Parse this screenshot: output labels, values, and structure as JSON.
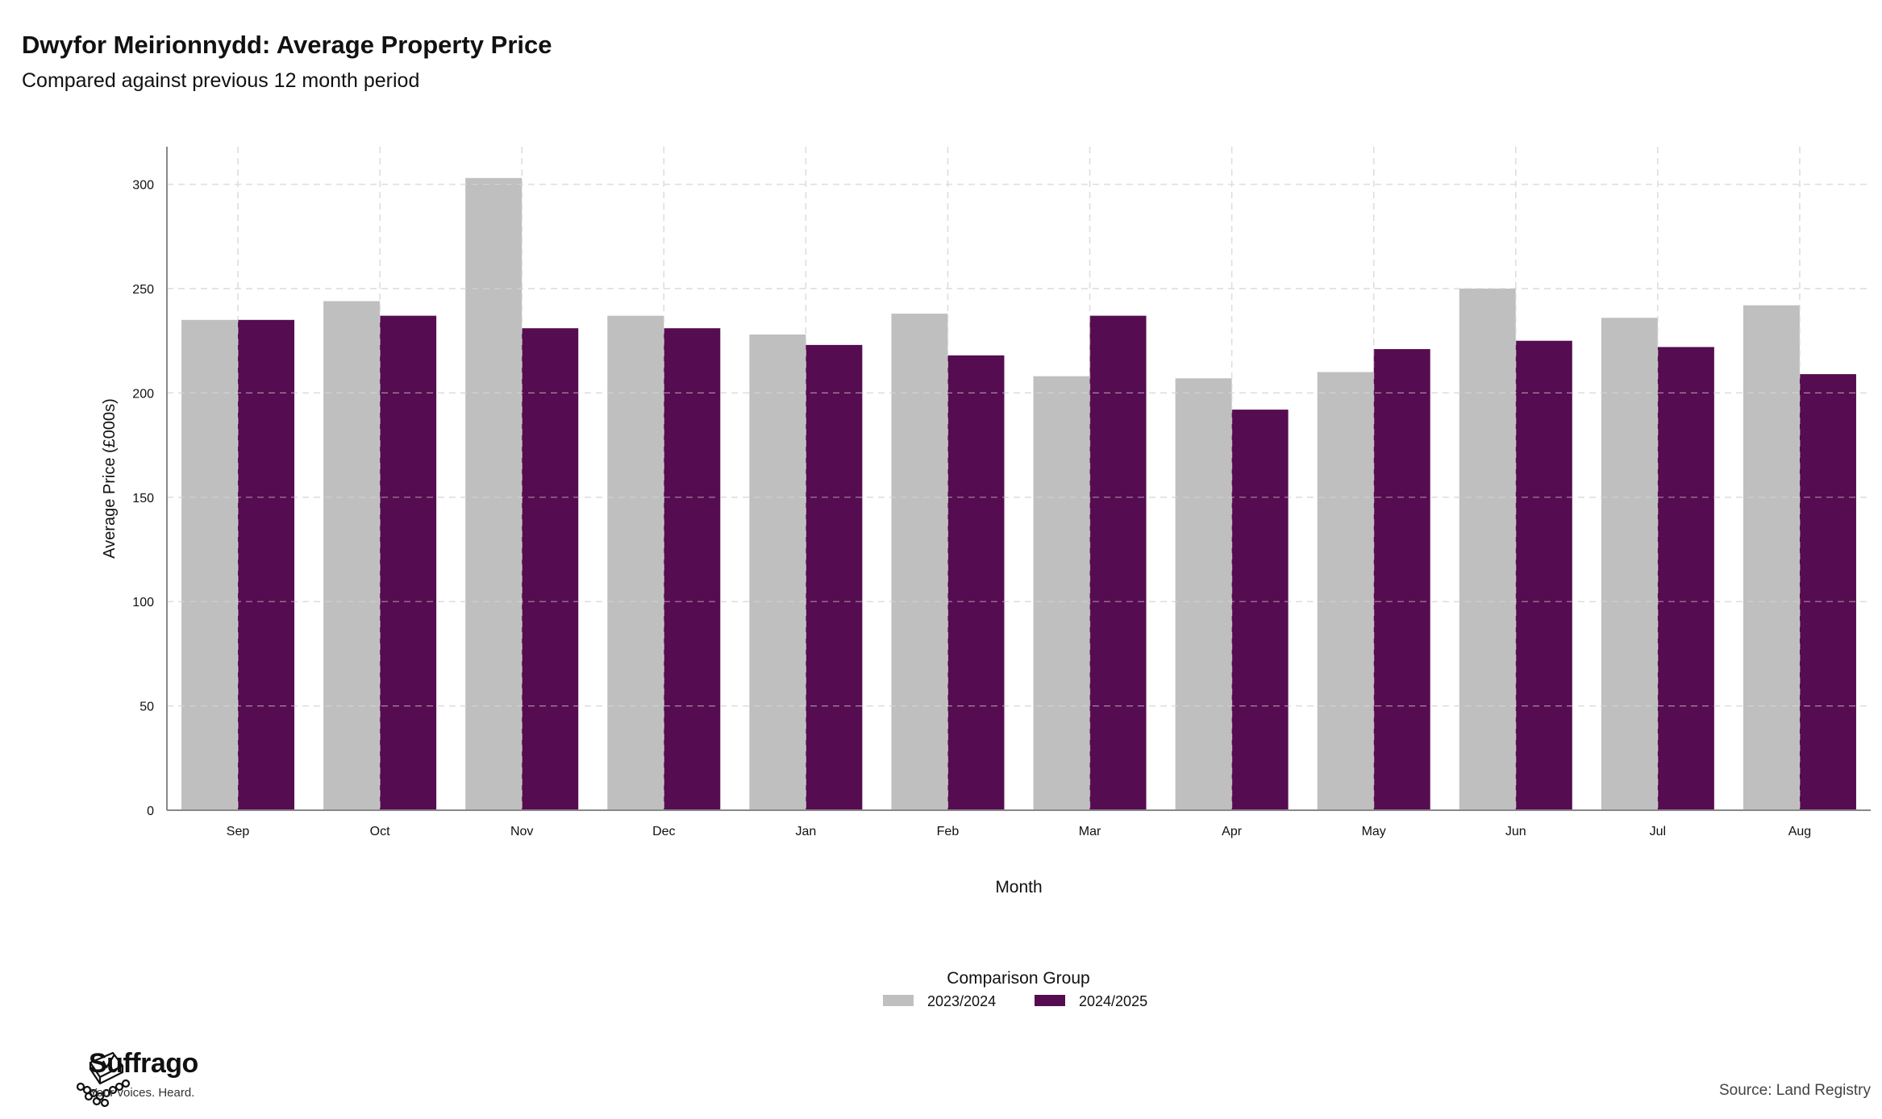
{
  "header": {
    "title": "Dwyfor Meirionnydd: Average Property Price",
    "subtitle": "Compared against previous 12 month period"
  },
  "chart_data": {
    "type": "bar",
    "title": "Dwyfor Meirionnydd: Average Property Price",
    "subtitle": "Compared against previous 12 month period",
    "xlabel": "Month",
    "ylabel": "Average Price (£000s)",
    "categories": [
      "Sep",
      "Oct",
      "Nov",
      "Dec",
      "Jan",
      "Feb",
      "Mar",
      "Apr",
      "May",
      "Jun",
      "Jul",
      "Aug"
    ],
    "series": [
      {
        "name": "2023/2024",
        "color": "#bfbfbf",
        "values": [
          235,
          244,
          303,
          237,
          228,
          238,
          208,
          207,
          210,
          250,
          236,
          242
        ]
      },
      {
        "name": "2024/2025",
        "color": "#560c50",
        "values": [
          235,
          237,
          231,
          231,
          223,
          218,
          237,
          192,
          221,
          225,
          222,
          209
        ]
      }
    ],
    "ylim": [
      0,
      318
    ],
    "yticks": [
      0,
      50,
      100,
      150,
      200,
      250,
      300
    ],
    "grid": true,
    "legend": {
      "title": "Comparison Group",
      "position": "bottom-center"
    }
  },
  "footer": {
    "brand_name": "Suffrago",
    "brand_tagline": "Your voices. Heard.",
    "source": "Source: Land Registry"
  }
}
